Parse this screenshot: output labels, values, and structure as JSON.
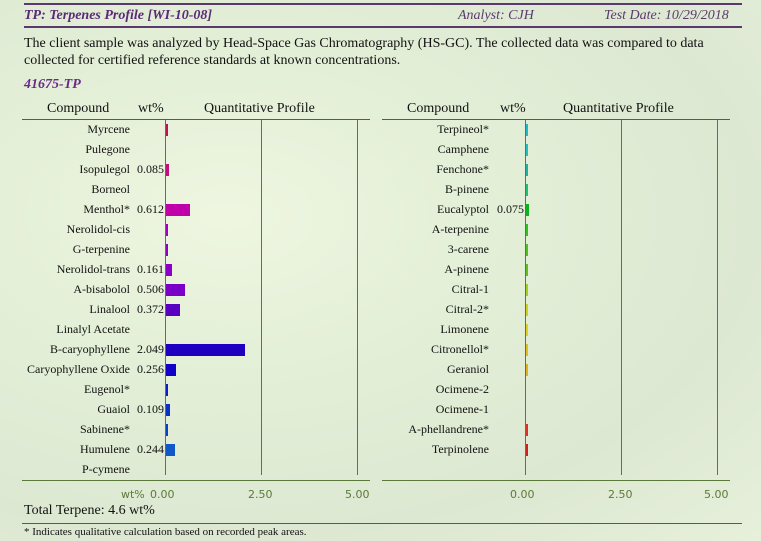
{
  "header": {
    "title": "TP: Terpenes Profile [WI-10-08]",
    "analyst": "Analyst: CJH",
    "test_date": "Test Date: 10/29/2018"
  },
  "description": "The client sample was analyzed by Head-Space Gas Chromatography (HS-GC).  The collected data was compared to data collected for certified reference standards at known concentrations.",
  "sample_id": "41675-TP",
  "columns": {
    "compound": "Compound",
    "wt": "wt%",
    "profile": "Quantitative Profile"
  },
  "axis": {
    "unit_label": "wt%",
    "ticks": [
      "0.00",
      "2.50",
      "5.00"
    ]
  },
  "total": "Total Terpene: 4.6 wt%",
  "footnote": "* Indicates qualitative calculation based on recorded peak areas.",
  "colors": {
    "accent": "#5a2a78",
    "axis": "#5b7a3a"
  },
  "chart_data": [
    {
      "type": "bar",
      "orientation": "horizontal",
      "title": "Quantitative Profile (left)",
      "xlabel": "wt%",
      "xlim": [
        0,
        5
      ],
      "categories": [
        "Myrcene",
        "Pulegone",
        "Isopulegol",
        "Borneol",
        "Menthol*",
        "Nerolidol-cis",
        "G-terpenine",
        "Nerolidol-trans",
        "A-bisabolol",
        "Linalool",
        "Linalyl Acetate",
        "B-caryophyllene",
        "Caryophyllene Oxide",
        "Eugenol*",
        "Guaiol",
        "Sabinene*",
        "Humulene",
        "P-cymene"
      ],
      "labels": [
        "",
        "",
        "0.085",
        "",
        "0.612",
        "",
        "",
        "0.161",
        "0.506",
        "0.372",
        "",
        "2.049",
        "0.256",
        "",
        "0.109",
        "",
        "0.244",
        ""
      ],
      "values": [
        0.02,
        0,
        0.085,
        0,
        0.612,
        0.01,
        0.02,
        0.161,
        0.506,
        0.372,
        0,
        2.049,
        0.256,
        0.03,
        0.109,
        0.01,
        0.244,
        0
      ],
      "bar_colors": [
        "#c0105a",
        "#c01070",
        "#c0107a",
        "#c01090",
        "#c000a8",
        "#a000c0",
        "#9000c0",
        "#8a00c8",
        "#7a00c8",
        "#5a00c0",
        "#4a00c0",
        "#2000c0",
        "#1000c8",
        "#0a20c0",
        "#0a30c8",
        "#0a40c8",
        "#1058c8",
        "#1070c8"
      ]
    },
    {
      "type": "bar",
      "orientation": "horizontal",
      "title": "Quantitative Profile (right)",
      "xlabel": "",
      "xlim": [
        0,
        5
      ],
      "categories": [
        "Terpineol*",
        "Camphene",
        "Fenchone*",
        "B-pinene",
        "Eucalyptol",
        "A-terpenine",
        "3-carene",
        "A-pinene",
        "Citral-1",
        "Citral-2*",
        "Limonene",
        "Citronellol*",
        "Geraniol",
        "Ocimene-2",
        "Ocimene-1",
        "A-phellandrene*",
        "Terpinolene"
      ],
      "labels": [
        "",
        "",
        "",
        "",
        "0.075",
        "",
        "",
        "",
        "",
        "",
        "",
        "",
        "",
        "",
        "",
        "",
        ""
      ],
      "values": [
        0.01,
        0.01,
        0.01,
        0.01,
        0.075,
        0.01,
        0.01,
        0.01,
        0.01,
        0.01,
        0.01,
        0.01,
        0.01,
        0,
        0,
        0.01,
        0.01
      ],
      "bar_colors": [
        "#20b8c8",
        "#20c0c0",
        "#20b0a0",
        "#20c070",
        "#10b020",
        "#30c020",
        "#50c020",
        "#60c020",
        "#a0d020",
        "#d0d020",
        "#e0d020",
        "#e0c020",
        "#e0b020",
        "#e08020",
        "#e06020",
        "#e03020",
        "#d02020"
      ]
    }
  ]
}
